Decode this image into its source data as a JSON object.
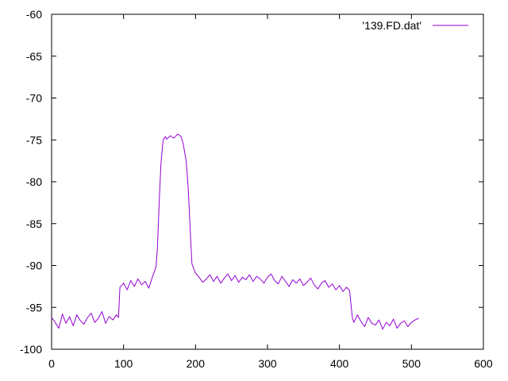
{
  "chart_data": {
    "type": "line",
    "title": "",
    "xlabel": "",
    "ylabel": "",
    "xlim": [
      0,
      600
    ],
    "ylim": [
      -100,
      -60
    ],
    "xticks": [
      0,
      100,
      200,
      300,
      400,
      500,
      600
    ],
    "yticks": [
      -100,
      -95,
      -90,
      -85,
      -80,
      -75,
      -70,
      -65,
      -60
    ],
    "grid": false,
    "legend": {
      "position": "top-right"
    },
    "series": [
      {
        "name": "'139.FD.dat'",
        "color": "#9400d3",
        "x": [
          0,
          5,
          10,
          15,
          20,
          25,
          30,
          35,
          40,
          45,
          50,
          55,
          60,
          65,
          70,
          75,
          80,
          85,
          90,
          93,
          95,
          100,
          105,
          110,
          115,
          120,
          125,
          130,
          135,
          140,
          145,
          147,
          150,
          152,
          155,
          158,
          160,
          165,
          170,
          175,
          180,
          183,
          187,
          190,
          193,
          195,
          200,
          205,
          210,
          215,
          220,
          225,
          230,
          235,
          240,
          245,
          250,
          255,
          260,
          265,
          270,
          275,
          280,
          285,
          290,
          295,
          300,
          305,
          310,
          315,
          320,
          325,
          330,
          335,
          340,
          345,
          350,
          355,
          360,
          365,
          370,
          375,
          380,
          385,
          390,
          395,
          400,
          405,
          410,
          414,
          418,
          420,
          425,
          430,
          435,
          440,
          445,
          450,
          455,
          460,
          465,
          470,
          475,
          480,
          485,
          490,
          495,
          500,
          505,
          510
        ],
        "y": [
          -96.2,
          -96.8,
          -97.5,
          -95.8,
          -96.9,
          -96.1,
          -97.2,
          -95.9,
          -96.6,
          -97.0,
          -96.2,
          -95.7,
          -96.8,
          -96.3,
          -95.5,
          -96.9,
          -96.1,
          -96.5,
          -95.9,
          -96.2,
          -92.6,
          -92.1,
          -92.9,
          -91.8,
          -92.5,
          -91.6,
          -92.3,
          -91.9,
          -92.7,
          -91.4,
          -90.2,
          -88.0,
          -81.5,
          -77.8,
          -75.0,
          -74.6,
          -74.9,
          -74.5,
          -74.8,
          -74.3,
          -74.6,
          -75.5,
          -77.5,
          -81.0,
          -86.5,
          -89.8,
          -90.9,
          -91.4,
          -92.0,
          -91.6,
          -91.1,
          -91.9,
          -91.3,
          -92.1,
          -91.5,
          -91.0,
          -91.8,
          -91.2,
          -92.0,
          -91.4,
          -91.7,
          -91.1,
          -91.9,
          -91.3,
          -91.6,
          -92.1,
          -91.4,
          -91.0,
          -91.8,
          -92.2,
          -91.3,
          -91.9,
          -92.5,
          -91.7,
          -92.1,
          -91.6,
          -92.4,
          -92.0,
          -91.5,
          -92.3,
          -92.8,
          -92.1,
          -91.8,
          -92.6,
          -92.2,
          -92.9,
          -92.4,
          -93.1,
          -92.6,
          -93.0,
          -96.3,
          -96.8,
          -95.9,
          -96.7,
          -97.3,
          -96.2,
          -96.9,
          -97.1,
          -96.5,
          -97.6,
          -96.8,
          -97.2,
          -96.4,
          -97.5,
          -96.9,
          -96.6,
          -97.3,
          -96.8,
          -96.5,
          -96.3
        ]
      }
    ]
  }
}
